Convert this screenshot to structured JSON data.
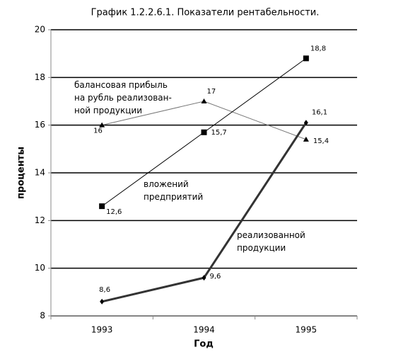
{
  "chart_data": {
    "type": "line",
    "title": "График 1.2.2.6.1.  Показатели рентабельности.",
    "x_label": "Год",
    "y_label": "проценты",
    "categories": [
      "1993",
      "1994",
      "1995"
    ],
    "ylim": [
      8,
      20
    ],
    "yticks": [
      8,
      10,
      12,
      14,
      16,
      18,
      20
    ],
    "grid": true,
    "series": [
      {
        "name": [
          "балансовая прибыль",
          "на рубль реализован-",
          "ной продукции"
        ],
        "color": "#777777",
        "marker": "triangle",
        "values": [
          16,
          17,
          15.4
        ],
        "value_labels": [
          "16",
          "17",
          "15,4"
        ]
      },
      {
        "name": [
          "вложений",
          "предприятий"
        ],
        "color": "#000000",
        "marker": "square",
        "values": [
          12.6,
          15.7,
          18.8
        ],
        "value_labels": [
          "12,6",
          "15,7",
          "18,8"
        ]
      },
      {
        "name": [
          "реализованной",
          "продукции"
        ],
        "color": "#333333",
        "marker": "diamond",
        "values": [
          8.6,
          9.6,
          16.1
        ],
        "value_labels": [
          "8,6",
          "9,6",
          "16,1"
        ]
      }
    ]
  }
}
